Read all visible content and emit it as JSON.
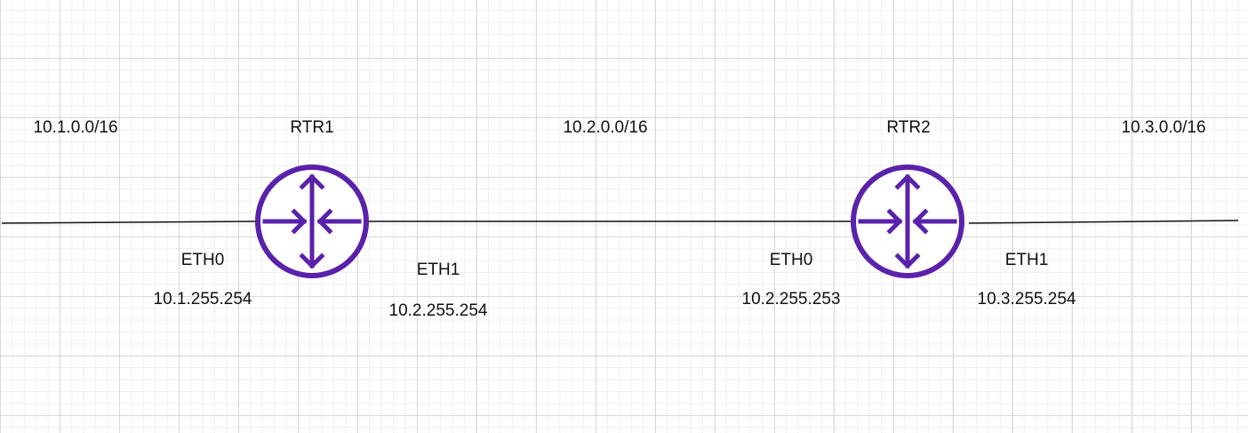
{
  "colors": {
    "router": "#5a22aa",
    "link": "#111111"
  },
  "networks": [
    {
      "cidr": "10.1.0.0/16"
    },
    {
      "cidr": "10.2.0.0/16"
    },
    {
      "cidr": "10.3.0.0/16"
    }
  ],
  "routers": [
    {
      "name": "RTR1",
      "icon": "router-icon",
      "interfaces": [
        {
          "name": "ETH0",
          "ip": "10.1.255.254"
        },
        {
          "name": "ETH1",
          "ip": "10.2.255.254"
        }
      ]
    },
    {
      "name": "RTR2",
      "icon": "router-icon",
      "interfaces": [
        {
          "name": "ETH0",
          "ip": "10.2.255.253"
        },
        {
          "name": "ETH1",
          "ip": "10.3.255.254"
        }
      ]
    }
  ]
}
